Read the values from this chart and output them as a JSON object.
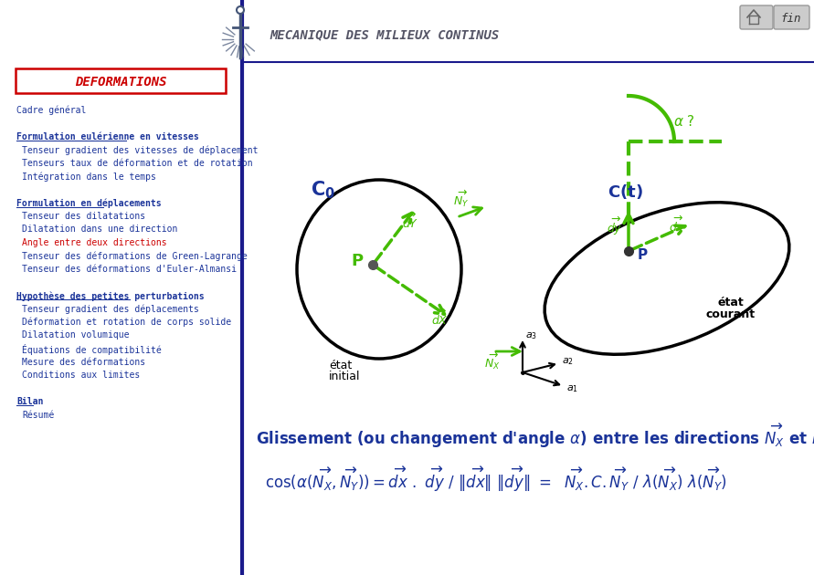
{
  "title": "MECANIQUE DES MILIEUX CONTINUS",
  "bg_color": "#ffffff",
  "header_line_color": "#1a1a8c",
  "sidebar_color": "#1a1a8c",
  "deformations_label": "DEFORMATIONS",
  "deformations_box_color": "#cc0000",
  "deformations_text_color": "#cc0000",
  "menu_color": "#1a3399",
  "menu_highlight_color": "#cc0000",
  "menu_items": [
    {
      "text": "Cadre général",
      "style": "normal",
      "indent": 0,
      "color": "#1a3399"
    },
    {
      "text": "",
      "style": "normal",
      "indent": 0,
      "color": "#1a3399"
    },
    {
      "text": "Formulation eulérienne en vitesses",
      "style": "bold_underline",
      "indent": 0,
      "color": "#1a3399"
    },
    {
      "text": "Tenseur gradient des vitesses de déplacement",
      "style": "normal",
      "indent": 1,
      "color": "#1a3399"
    },
    {
      "text": "Tenseurs taux de déformation et de rotation",
      "style": "normal",
      "indent": 1,
      "color": "#1a3399"
    },
    {
      "text": "Intégration dans le temps",
      "style": "normal",
      "indent": 1,
      "color": "#1a3399"
    },
    {
      "text": "",
      "style": "normal",
      "indent": 0,
      "color": "#1a3399"
    },
    {
      "text": "Formulation en déplacements",
      "style": "bold_underline",
      "indent": 0,
      "color": "#1a3399"
    },
    {
      "text": "Tenseur des dilatations",
      "style": "normal",
      "indent": 1,
      "color": "#1a3399"
    },
    {
      "text": "Dilatation dans une direction",
      "style": "normal",
      "indent": 1,
      "color": "#1a3399"
    },
    {
      "text": "Angle entre deux directions",
      "style": "normal",
      "indent": 1,
      "color": "#cc0000"
    },
    {
      "text": "Tenseur des déformations de Green-Lagrange",
      "style": "normal",
      "indent": 1,
      "color": "#1a3399"
    },
    {
      "text": "Tenseur des déformations d'Euler-Almansi",
      "style": "normal",
      "indent": 1,
      "color": "#1a3399"
    },
    {
      "text": "",
      "style": "normal",
      "indent": 0,
      "color": "#1a3399"
    },
    {
      "text": "Hypothèse des petites perturbations",
      "style": "bold_underline",
      "indent": 0,
      "color": "#1a3399"
    },
    {
      "text": "Tenseur gradient des déplacements",
      "style": "normal",
      "indent": 1,
      "color": "#1a3399"
    },
    {
      "text": "Déformation et rotation de corps solide",
      "style": "normal",
      "indent": 1,
      "color": "#1a3399"
    },
    {
      "text": "Dilatation volumique",
      "style": "normal",
      "indent": 1,
      "color": "#1a3399"
    },
    {
      "text": "Équations de compatibilité",
      "style": "normal",
      "indent": 1,
      "color": "#1a3399"
    },
    {
      "text": "Mesure des déformations",
      "style": "normal",
      "indent": 1,
      "color": "#1a3399"
    },
    {
      "text": "Conditions aux limites",
      "style": "normal",
      "indent": 1,
      "color": "#1a3399"
    },
    {
      "text": "",
      "style": "normal",
      "indent": 0,
      "color": "#1a3399"
    },
    {
      "text": "Bilan",
      "style": "bold_underline",
      "indent": 0,
      "color": "#1a3399"
    },
    {
      "text": "Résumé",
      "style": "normal",
      "indent": 1,
      "color": "#1a3399"
    }
  ],
  "diagram_green": "#44bb00",
  "diagram_black": "#000000",
  "diagram_blue": "#1a3399",
  "fin_button_color": "#888888"
}
